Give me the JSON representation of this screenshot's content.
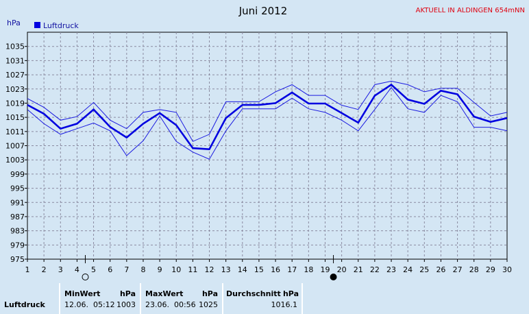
{
  "chart_data": {
    "type": "line",
    "title": "Juni 2012",
    "station": "AKTUELL IN ALDINGEN 654mNN",
    "ylabel": "hPa",
    "legend": "Luftdruck",
    "ylim": [
      975,
      1039
    ],
    "yticks": [
      975,
      979,
      983,
      987,
      991,
      995,
      999,
      1003,
      1007,
      1011,
      1015,
      1019,
      1023,
      1027,
      1031,
      1035
    ],
    "xticks": [
      1,
      2,
      3,
      4,
      5,
      6,
      7,
      8,
      9,
      10,
      11,
      12,
      13,
      14,
      15,
      16,
      17,
      18,
      19,
      20,
      21,
      22,
      23,
      24,
      25,
      26,
      27,
      28,
      29,
      30
    ],
    "x": [
      1,
      2,
      3,
      4,
      5,
      6,
      7,
      8,
      9,
      10,
      11,
      12,
      13,
      14,
      15,
      16,
      17,
      18,
      19,
      20,
      21,
      22,
      23,
      24,
      25,
      26,
      27,
      28,
      29,
      30
    ],
    "series": [
      {
        "name": "Luftdruck",
        "role": "max",
        "values": [
          1020.3,
          1017.8,
          1014.2,
          1015.2,
          1019.2,
          1014.2,
          1011.8,
          1016.4,
          1017.2,
          1016.4,
          1008.2,
          1010.2,
          1019.4,
          1019.4,
          1019.4,
          1022.2,
          1024.2,
          1021.2,
          1021.2,
          1018.4,
          1017.2,
          1024.2,
          1025.2,
          1024.2,
          1022.2,
          1023.2,
          1023.2,
          1019.2,
          1015.4,
          1016.4
        ]
      },
      {
        "name": "Luftdruck",
        "role": "mean",
        "values": [
          1018.5,
          1016.0,
          1011.8,
          1013.2,
          1017.2,
          1012.3,
          1009.3,
          1013.2,
          1016.2,
          1012.8,
          1006.3,
          1006.0,
          1014.8,
          1018.5,
          1018.5,
          1019.0,
          1022.0,
          1018.9,
          1018.9,
          1016.2,
          1013.5,
          1021.1,
          1024.2,
          1020.0,
          1018.8,
          1022.5,
          1021.5,
          1015.2,
          1013.7,
          1014.8
        ]
      },
      {
        "name": "Luftdruck",
        "role": "min",
        "values": [
          1017.2,
          1013.2,
          1010.2,
          1011.8,
          1013.4,
          1011.2,
          1004.2,
          1008.4,
          1015.4,
          1008.2,
          1005.2,
          1003.2,
          1011.2,
          1017.4,
          1017.4,
          1017.4,
          1020.4,
          1017.4,
          1016.4,
          1014.2,
          1011.2,
          1017.2,
          1023.4,
          1017.4,
          1016.4,
          1021.2,
          1019.4,
          1012.2,
          1012.2,
          1011.2
        ]
      }
    ],
    "moon": [
      {
        "x": 4.5,
        "phase": "full"
      },
      {
        "x": 19.5,
        "phase": "new"
      }
    ],
    "grid": true,
    "legend_position": "top-left",
    "colors": {
      "max": "#1a1ae0",
      "mean": "#0000e0",
      "min": "#1a1ae0",
      "grid": "#8a8aa0",
      "background": "#d4e6f4",
      "station": "#e0000e"
    }
  },
  "stats": {
    "row_label": "Luftdruck",
    "min_header": "MinWert",
    "min_unit": "hPa",
    "min_time": "12.06.  05:12",
    "min_value": "1003",
    "max_header": "MaxWert",
    "max_unit": "hPa",
    "max_time": "23.06.  00:56",
    "max_value": "1025",
    "avg_header": "Durchschnitt",
    "avg_unit": "hPa",
    "avg_value": "1016.1"
  }
}
